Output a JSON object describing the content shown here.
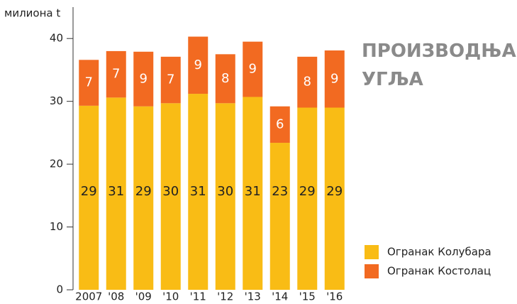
{
  "chart_data": {
    "type": "stacked-bar",
    "title": "ПРОИЗВОДЊА УГЉА",
    "y_label": "милиона t",
    "categories": [
      "2007",
      "'08",
      "'09",
      "'10",
      "'11",
      "'12",
      "'13",
      "'14",
      "'15",
      "'16"
    ],
    "series": [
      {
        "name": "Огранак Колубара",
        "color": "#f9bc15",
        "values": [
          29.3,
          30.6,
          29.2,
          29.7,
          31.2,
          29.7,
          30.7,
          23.4,
          29.0,
          29.0
        ],
        "value_labels": [
          "29",
          "31",
          "29",
          "30",
          "31",
          "30",
          "31",
          "23",
          "29",
          "29"
        ]
      },
      {
        "name": "Огранак Костолац",
        "color": "#f26a21",
        "values": [
          7.3,
          7.4,
          8.7,
          7.4,
          9.1,
          7.8,
          8.8,
          5.8,
          8.1,
          9.1
        ],
        "value_labels": [
          "7",
          "7",
          "9",
          "7",
          "9",
          "8",
          "9",
          "6",
          "8",
          "9"
        ]
      }
    ],
    "ylim": [
      0,
      45
    ],
    "yticks": [
      0,
      10,
      20,
      30,
      40
    ],
    "grid": false
  }
}
